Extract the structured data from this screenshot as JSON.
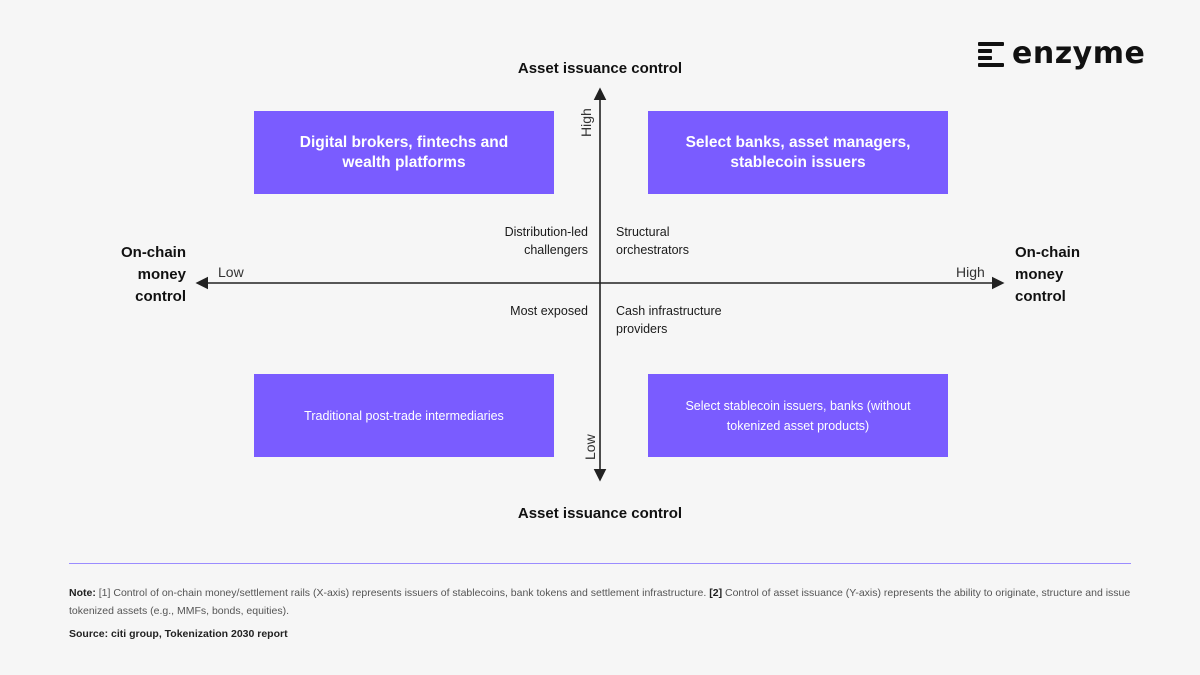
{
  "brand": {
    "name": "enzyme"
  },
  "axes": {
    "y_title_top": "Asset issuance control",
    "y_title_bottom": "Asset issuance control",
    "x_title_left": "On-chain money control",
    "x_title_right": "On-chain money control",
    "x_low": "Low",
    "x_high": "High",
    "y_high": "High",
    "y_low": "Low"
  },
  "quadrants": {
    "top_left": {
      "box": "Digital brokers, fintechs and wealth platforms",
      "label": "Distribution-led challengers"
    },
    "top_right": {
      "box": "Select banks, asset managers, stablecoin issuers",
      "label": "Structural orchestrators"
    },
    "bottom_left": {
      "box": "Traditional post-trade intermediaries",
      "label": "Most exposed"
    },
    "bottom_right": {
      "box": "Select stablecoin issuers, banks (without tokenized asset products)",
      "label": "Cash infrastructure providers"
    }
  },
  "footer": {
    "note_label": "Note:",
    "note_1_marker": "[1]",
    "note_1_text": "Control of on-chain money/settlement rails (X-axis) represents issuers of stablecoins, bank tokens and settlement infrastructure.",
    "note_2_marker": "[2]",
    "note_2_text": "Control of asset issuance (Y-axis) represents the ability to originate, structure and issue tokenized assets (e.g., MMFs, bonds, equities).",
    "source": "Source: citi group, Tokenization 2030 report"
  },
  "colors": {
    "box": "#7a5cff",
    "divider": "#9b8cff",
    "axis": "#222222"
  }
}
